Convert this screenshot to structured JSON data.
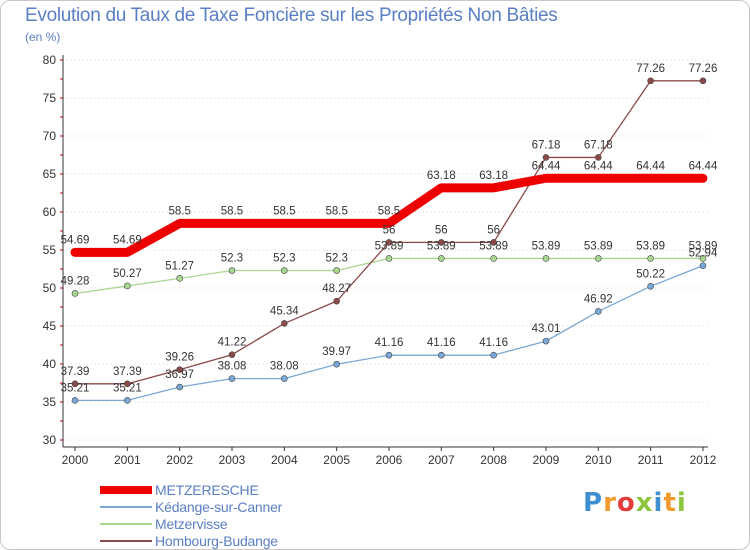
{
  "header": {
    "title": "Evolution du Taux de Taxe Foncière sur les Propriétés Non Bâties",
    "subtitle": "(en %)"
  },
  "logo": {
    "letters": [
      "P",
      "r",
      "o",
      "x",
      "i",
      "t",
      "i"
    ],
    "colors": [
      "#3f8fd2",
      "#f29a2e",
      "#e23c3c",
      "#8cc63f",
      "#3f8fd2",
      "#f29a2e",
      "#8cc63f"
    ]
  },
  "chart_data": {
    "type": "line",
    "title": "Evolution du Taux de Taxe Foncière sur les Propriétés Non Bâties",
    "ylabel": "(en %)",
    "xlabel": "",
    "ylim": [
      30,
      80
    ],
    "yticks": [
      30,
      35,
      40,
      45,
      50,
      55,
      60,
      65,
      70,
      75,
      80
    ],
    "categories": [
      "2000",
      "2001",
      "2002",
      "2003",
      "2004",
      "2005",
      "2006",
      "2007",
      "2008",
      "2009",
      "2010",
      "2011",
      "2012"
    ],
    "legend_position": "bottom-left",
    "series": [
      {
        "name": "METZERESCHE",
        "color": "#ee0000",
        "values": [
          54.69,
          54.69,
          58.5,
          58.5,
          58.5,
          58.5,
          58.5,
          63.18,
          63.18,
          64.44,
          64.44,
          64.44,
          64.44
        ],
        "labels": [
          "54.69",
          "54.69",
          "58.5",
          "58.5",
          "58.5",
          "58.5",
          "58.5",
          "63.18",
          "63.18",
          "64.44",
          "64.44",
          "64.44",
          "64.44"
        ]
      },
      {
        "name": "Kédange-sur-Canner",
        "color": "#7aa8d6",
        "values": [
          35.21,
          35.21,
          36.97,
          38.08,
          38.08,
          39.97,
          41.16,
          41.16,
          41.16,
          43.01,
          46.92,
          50.22,
          52.94
        ],
        "labels": [
          "35.21",
          "35.21",
          "36.97",
          "38.08",
          "38.08",
          "39.97",
          "41.16",
          "41.16",
          "41.16",
          "43.01",
          "46.92",
          "50.22",
          "52.94"
        ]
      },
      {
        "name": "Metzervisse",
        "color": "#a8d890",
        "values": [
          49.28,
          50.27,
          51.27,
          52.3,
          52.3,
          52.3,
          53.89,
          53.89,
          53.89,
          53.89,
          53.89,
          53.89,
          53.89
        ],
        "labels": [
          "49.28",
          "50.27",
          "51.27",
          "52.3",
          "52.3",
          "52.3",
          "53.89",
          "53.89",
          "53.89",
          "53.89",
          "53.89",
          "53.89",
          "53.89"
        ]
      },
      {
        "name": "Hombourg-Budange",
        "color": "#8b4a4a",
        "values": [
          37.39,
          37.39,
          39.26,
          41.22,
          45.34,
          48.27,
          56,
          56,
          56,
          67.18,
          67.18,
          77.26,
          77.26
        ],
        "labels": [
          "37.39",
          "37.39",
          "39.26",
          "41.22",
          "45.34",
          "48.27",
          "56",
          "56",
          "56",
          "67.18",
          "67.18",
          "77.26",
          "77.26"
        ]
      }
    ]
  }
}
